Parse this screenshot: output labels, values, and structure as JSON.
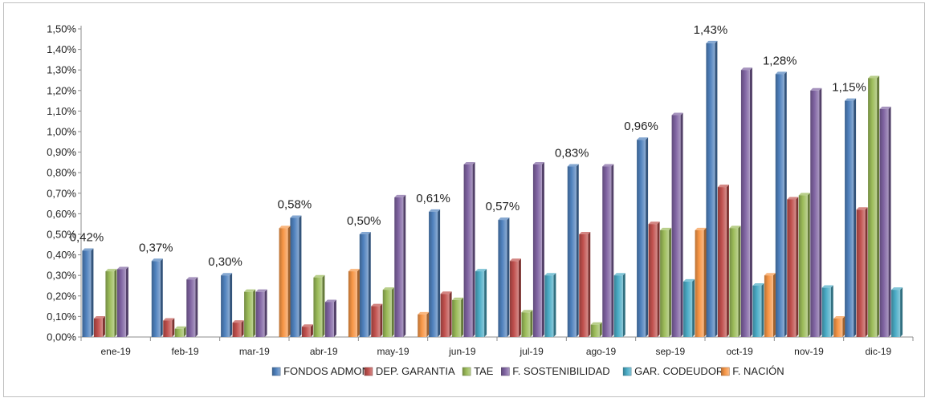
{
  "chart_data": {
    "type": "bar",
    "title": "",
    "xlabel": "",
    "ylabel": "",
    "ylim": [
      0,
      0.015
    ],
    "y_tick_step": 0.001,
    "y_format": "percent-comma-2",
    "grid": false,
    "legend_position": "bottom",
    "categories": [
      "ene-19",
      "feb-19",
      "mar-19",
      "abr-19",
      "may-19",
      "jun-19",
      "jul-19",
      "ago-19",
      "sep-19",
      "oct-19",
      "nov-19",
      "dic-19"
    ],
    "y_ticks": [
      "0,00%",
      "0,10%",
      "0,20%",
      "0,30%",
      "0,40%",
      "0,50%",
      "0,60%",
      "0,70%",
      "0,80%",
      "0,90%",
      "1,00%",
      "1,10%",
      "1,20%",
      "1,30%",
      "1,40%",
      "1,50%"
    ],
    "series": [
      {
        "name": "FONDOS ADMON",
        "color": "#4f81bd",
        "values": [
          0.0042,
          0.0037,
          0.003,
          0.0058,
          0.005,
          0.0061,
          0.0057,
          0.0083,
          0.0096,
          0.0143,
          0.0128,
          0.0115
        ]
      },
      {
        "name": "DEP. GARANTIA",
        "color": "#c0504d",
        "values": [
          0.0009,
          0.0008,
          0.0007,
          0.0005,
          0.0015,
          0.0021,
          0.0037,
          0.005,
          0.0055,
          0.0073,
          0.0067,
          0.0062
        ]
      },
      {
        "name": "TAE",
        "color": "#9bbb59",
        "values": [
          0.0032,
          0.0004,
          0.0022,
          0.0029,
          0.0023,
          0.0018,
          0.0012,
          0.0006,
          0.0052,
          0.0053,
          0.0069,
          0.0126
        ]
      },
      {
        "name": "F. SOSTENIBILIDAD",
        "color": "#8064a2",
        "values": [
          0.0033,
          0.0028,
          0.0022,
          0.0017,
          0.0068,
          0.0084,
          0.0084,
          0.0083,
          0.0108,
          0.013,
          0.012,
          0.0111
        ]
      },
      {
        "name": "GAR. CODEUDOR",
        "color": "#4bacc6",
        "values": [
          null,
          null,
          null,
          null,
          null,
          0.0032,
          0.003,
          0.003,
          0.0027,
          0.0025,
          0.0024,
          0.0023
        ]
      },
      {
        "name": "F. NACIÓN",
        "color": "#f79646",
        "values": [
          null,
          null,
          0.0053,
          0.0032,
          0.0011,
          null,
          null,
          null,
          0.0052,
          0.003,
          0.0009,
          null
        ]
      }
    ],
    "data_labels": {
      "series": "FONDOS ADMON",
      "labels": [
        "0,42%",
        "0,37%",
        "0,30%",
        "0,58%",
        "0,50%",
        "0,61%",
        "0,57%",
        "0,83%",
        "0,96%",
        "1,43%",
        "1,28%",
        "1,15%"
      ]
    }
  }
}
